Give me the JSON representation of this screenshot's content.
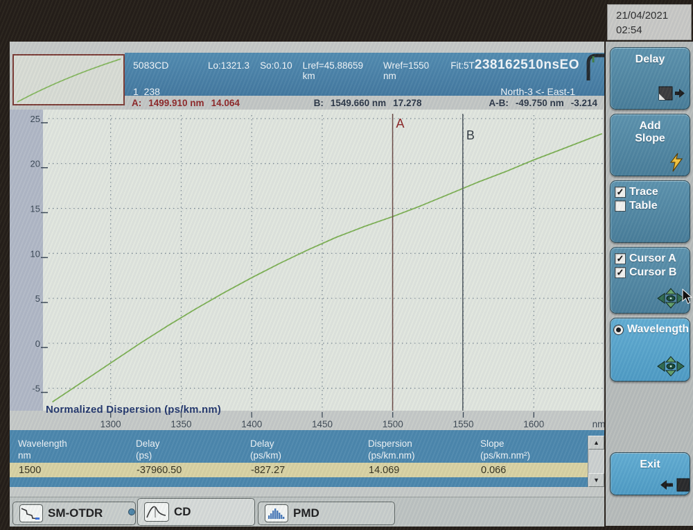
{
  "datetime": {
    "date": "21/04/2021",
    "time": "02:54"
  },
  "header": {
    "file_id": "5083CD",
    "params": {
      "lo": "Lo:1321.3",
      "so": "So:0.10",
      "lref": "Lref=45.88659 km",
      "wref": "Wref=1550 nm",
      "fit": "Fit:5T"
    },
    "measurement_id": "238162510nsEO",
    "trace_count": "1  238",
    "route": "North-3 <- East-1",
    "cursor_a": {
      "label": "A:",
      "wavelength": "1499.910 nm",
      "value": "14.064"
    },
    "cursor_b": {
      "label": "B:",
      "wavelength": "1549.660 nm",
      "value": "17.278"
    },
    "cursor_ab": {
      "label": "A-B:",
      "wavelength": "-49.750 nm",
      "value": "-3.214"
    }
  },
  "chart_data": {
    "type": "line",
    "title": "Normalized Dispersion (ps/km.nm)",
    "x_unit": "nm",
    "xlim": [
      1252,
      1649
    ],
    "ylim": [
      -7.5,
      26
    ],
    "xticks": [
      1300,
      1350,
      1400,
      1450,
      1500,
      1550,
      1600
    ],
    "yticks": [
      25,
      20,
      15,
      10,
      5,
      0,
      -5
    ],
    "grid": "dotted",
    "series": [
      {
        "name": "normalized-dispersion",
        "color": "#7db053",
        "x": [
          1259,
          1280,
          1300,
          1321,
          1340,
          1360,
          1380,
          1400,
          1420,
          1440,
          1460,
          1480,
          1500,
          1520,
          1540,
          1560,
          1580,
          1600,
          1620,
          1648
        ],
        "y": [
          -6.5,
          -4.3,
          -2.2,
          0.0,
          1.9,
          3.8,
          5.6,
          7.3,
          8.9,
          10.4,
          11.8,
          13.0,
          14.1,
          15.3,
          16.6,
          17.9,
          19.1,
          20.4,
          21.6,
          23.3
        ]
      }
    ],
    "cursors": [
      {
        "label": "A",
        "x_nm": 1499.91,
        "value": 14.064,
        "line_color": "#6b4a44",
        "label_color": "#8b2424"
      },
      {
        "label": "B",
        "x_nm": 1549.66,
        "value": 17.278,
        "line_color": "#4d565c",
        "label_color": "#343c42"
      }
    ]
  },
  "results_table": {
    "columns": [
      {
        "name": "Wavelength",
        "unit": "nm"
      },
      {
        "name": "Delay",
        "unit": "(ps)"
      },
      {
        "name": "Delay",
        "unit": "(ps/km)"
      },
      {
        "name": "Dispersion",
        "unit": "(ps/km.nm)"
      },
      {
        "name": "Slope",
        "unit": "(ps/km.nm²)"
      }
    ],
    "rows": [
      [
        "1500",
        "-37960.50",
        "-827.27",
        "14.069",
        "0.066"
      ]
    ],
    "selected_row": 0,
    "scrollbar": {
      "up": "▲",
      "down": "▼"
    }
  },
  "sidebar": {
    "delay": {
      "label": "Delay"
    },
    "add_slope": {
      "label": "Add",
      "label2": "Slope"
    },
    "trace_table": {
      "options": [
        {
          "label": "Trace",
          "mark": "✓"
        },
        {
          "label": "Table",
          "mark": ""
        }
      ]
    },
    "cursors": {
      "options": [
        {
          "label": "Cursor A",
          "mark": "✓"
        },
        {
          "label": "Cursor B",
          "mark": "✓"
        }
      ]
    },
    "wavelength": {
      "label": "Wavelength",
      "selected": true
    },
    "exit": {
      "label": "Exit"
    }
  },
  "tabs": [
    {
      "label": "SM-OTDR",
      "active": false
    },
    {
      "label": "CD",
      "active": true
    },
    {
      "label": "PMD",
      "active": false
    }
  ],
  "colors": {
    "header_blue": "#4c87ac",
    "key_teal": "#5d93ad",
    "key_cyan": "#58a7cd",
    "row_highlight": "#d9d2a2",
    "curve_green": "#7db053",
    "cursor_a_red": "#8b2424",
    "chart_bg": "#e1e6de"
  }
}
